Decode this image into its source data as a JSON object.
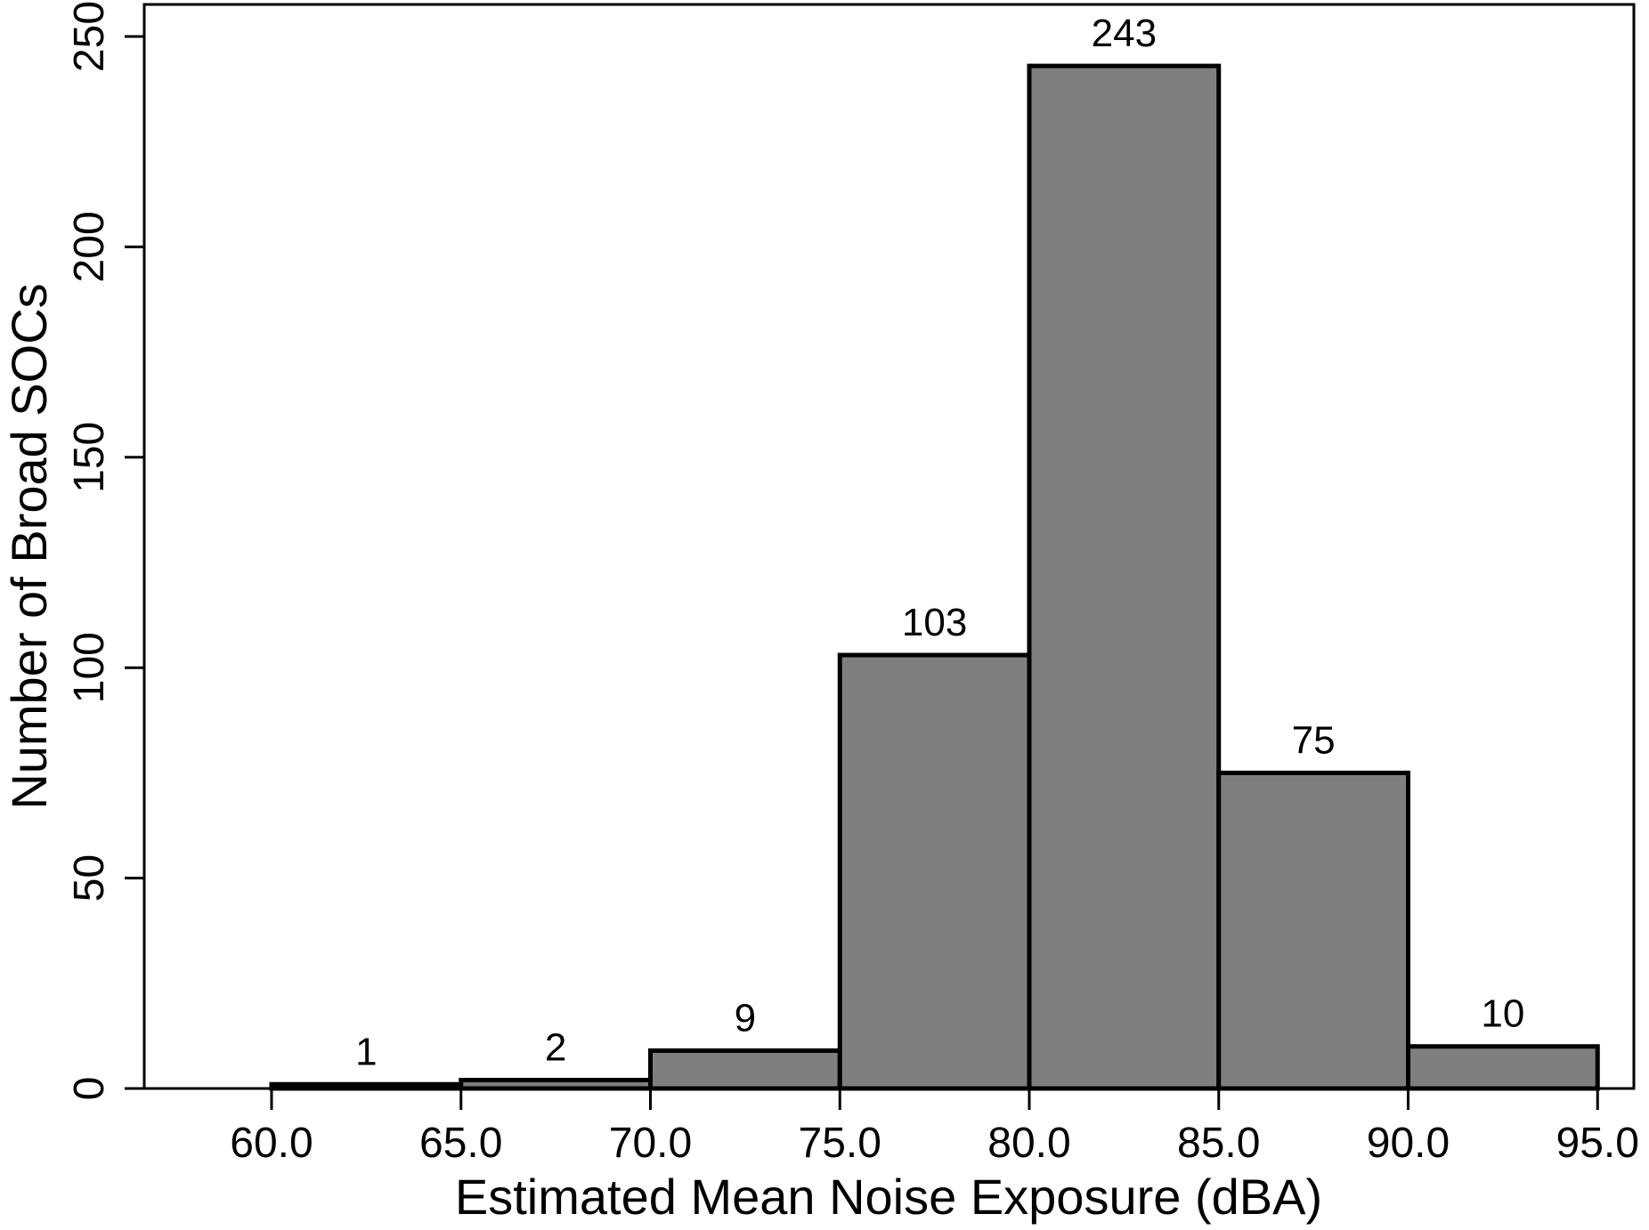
{
  "page": {
    "background": "#FFFFFF"
  },
  "chart_data": {
    "type": "bar",
    "subtype": "histogram",
    "title": "",
    "xlabel": "Estimated Mean Noise Exposure (dBA)",
    "ylabel": "Number of Broad SOCs",
    "bin_edges": [
      60,
      65,
      70,
      75,
      80,
      85,
      90,
      95
    ],
    "counts": [
      1,
      2,
      9,
      103,
      243,
      75,
      10
    ],
    "bar_labels": [
      "1",
      "2",
      "9",
      "103",
      "243",
      "75",
      "10"
    ],
    "x_tick_values": [
      60,
      65,
      70,
      75,
      80,
      85,
      90,
      95
    ],
    "x_tick_labels": [
      "60.0",
      "65.0",
      "70.0",
      "75.0",
      "80.0",
      "85.0",
      "90.0",
      "95.0"
    ],
    "y_tick_values": [
      0,
      50,
      100,
      150,
      200,
      250
    ],
    "y_tick_labels": [
      "0",
      "50",
      "100",
      "150",
      "200",
      "250"
    ],
    "xlim": [
      60,
      95
    ],
    "ylim": [
      0,
      250
    ],
    "grid": false,
    "legend": null,
    "colors": {
      "bar_fill": "#7F7F7F",
      "bar_border": "#000000",
      "axis": "#000000",
      "text": "#000000"
    }
  }
}
